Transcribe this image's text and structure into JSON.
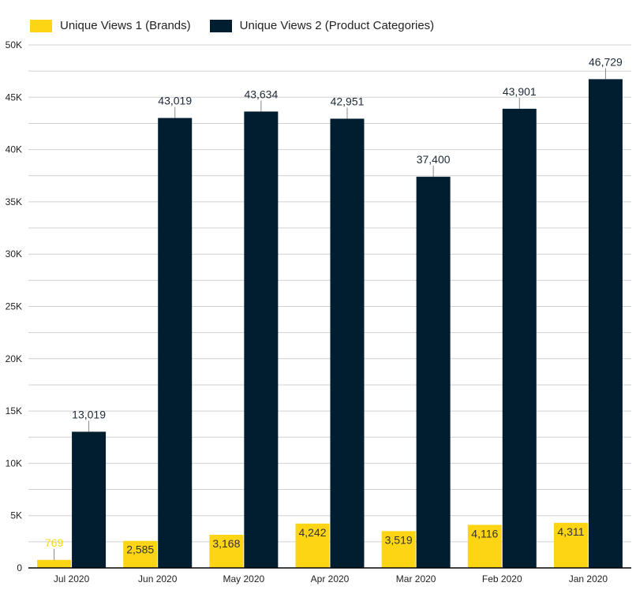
{
  "chart_data": {
    "type": "bar",
    "categories": [
      "Jul 2020",
      "Jun 2020",
      "May 2020",
      "Apr 2020",
      "Mar 2020",
      "Feb 2020",
      "Jan 2020"
    ],
    "series": [
      {
        "name": "Unique Views 1 (Brands)",
        "color": "#fdd515",
        "values": [
          769,
          2585,
          3168,
          4242,
          3519,
          4116,
          4311
        ]
      },
      {
        "name": "Unique Views 2 (Product Categories)",
        "color": "#011e30",
        "values": [
          13019,
          43019,
          43634,
          42951,
          37400,
          43901,
          46729
        ]
      }
    ],
    "ylim": [
      0,
      50000
    ],
    "yticks": [
      0,
      5000,
      10000,
      15000,
      20000,
      25000,
      30000,
      35000,
      40000,
      45000,
      50000
    ],
    "ytick_labels": [
      "0",
      "5K",
      "10K",
      "15K",
      "20K",
      "25K",
      "30K",
      "35K",
      "40K",
      "45K",
      "50K"
    ],
    "grid": true,
    "legend": "top-left",
    "data_labels": true,
    "xlabel": "",
    "ylabel": ""
  }
}
